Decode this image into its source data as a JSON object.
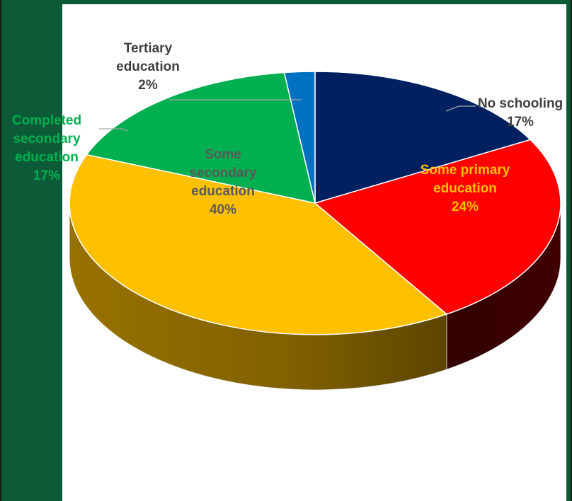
{
  "chart_data": {
    "type": "pie",
    "three_d": true,
    "categories": [
      "No schooling",
      "Some primary education",
      "Some secondary education",
      "Completed secondary education",
      "Tertiary education"
    ],
    "values": [
      17,
      24,
      40,
      17,
      2
    ],
    "value_labels": [
      "17%",
      "24%",
      "40%",
      "17%",
      "2%"
    ],
    "colors": [
      "#002060",
      "#ff0000",
      "#ffc000",
      "#00b050",
      "#0070c0"
    ],
    "side_colors": [
      "#001030",
      "#5c0000",
      "#a07800",
      "#006030",
      "#004070"
    ],
    "label_colors": [
      "#404040",
      "#ffc000",
      "#595959",
      "#00b050",
      "#404040"
    ],
    "title": "",
    "legend": "none",
    "data_labels": "category-and-percent"
  }
}
